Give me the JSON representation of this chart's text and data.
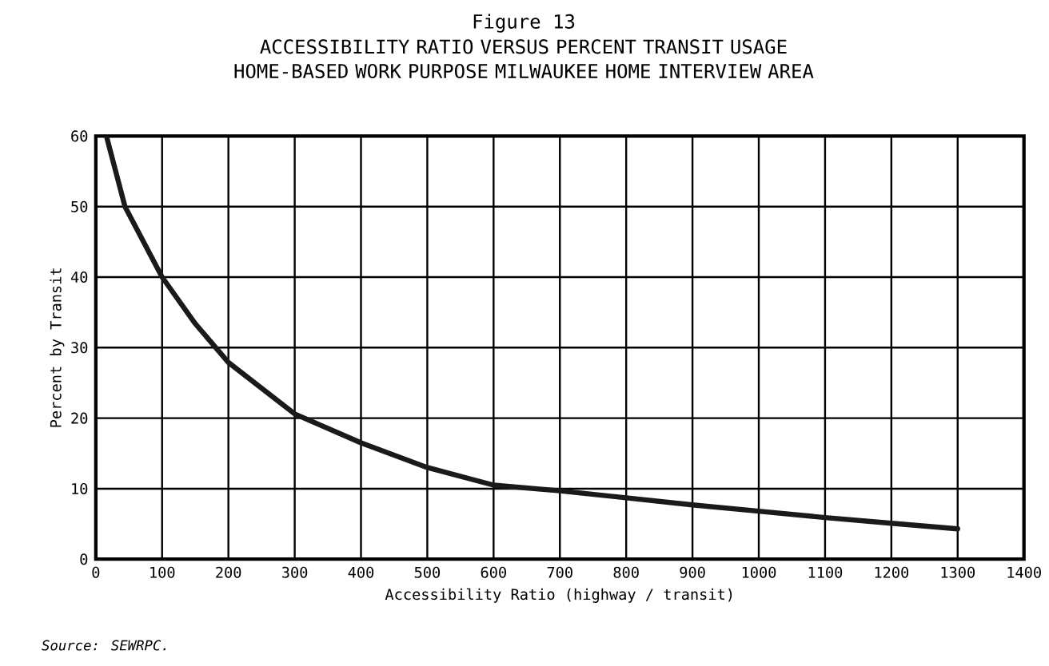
{
  "chart_data": {
    "type": "line",
    "title": "Figure 13",
    "subtitle": "ACCESSIBILITY RATIO VERSUS PERCENT TRANSIT USAGE HOME-BASED WORK PURPOSE MILWAUKEE HOME INTERVIEW AREA",
    "xlabel": "Accessibility Ratio (highway / transit)",
    "ylabel": "Percent by Transit",
    "annotations": [
      "Source: SEWRPC."
    ],
    "x": [
      16,
      44,
      100,
      150,
      200,
      300,
      400,
      500,
      600,
      700,
      800,
      900,
      1000,
      1100,
      1200,
      1300
    ],
    "series": [
      {
        "color": "#1a1a1a",
        "values": [
          60,
          50,
          40,
          33.4,
          27.9,
          20.6,
          16.5,
          13,
          10.5,
          9.7,
          8.7,
          7.7,
          6.8,
          5.9,
          5.1,
          4.3
        ]
      }
    ],
    "xlim": [
      0,
      1400
    ],
    "ylim": [
      0,
      60
    ],
    "xticks": [
      0,
      100,
      200,
      300,
      400,
      500,
      600,
      700,
      800,
      900,
      1000,
      1100,
      1200,
      1300,
      1400
    ],
    "yticks": [
      0,
      10,
      20,
      30,
      40,
      50,
      60
    ],
    "grid": true,
    "marker": "none",
    "line_style": "solid"
  }
}
